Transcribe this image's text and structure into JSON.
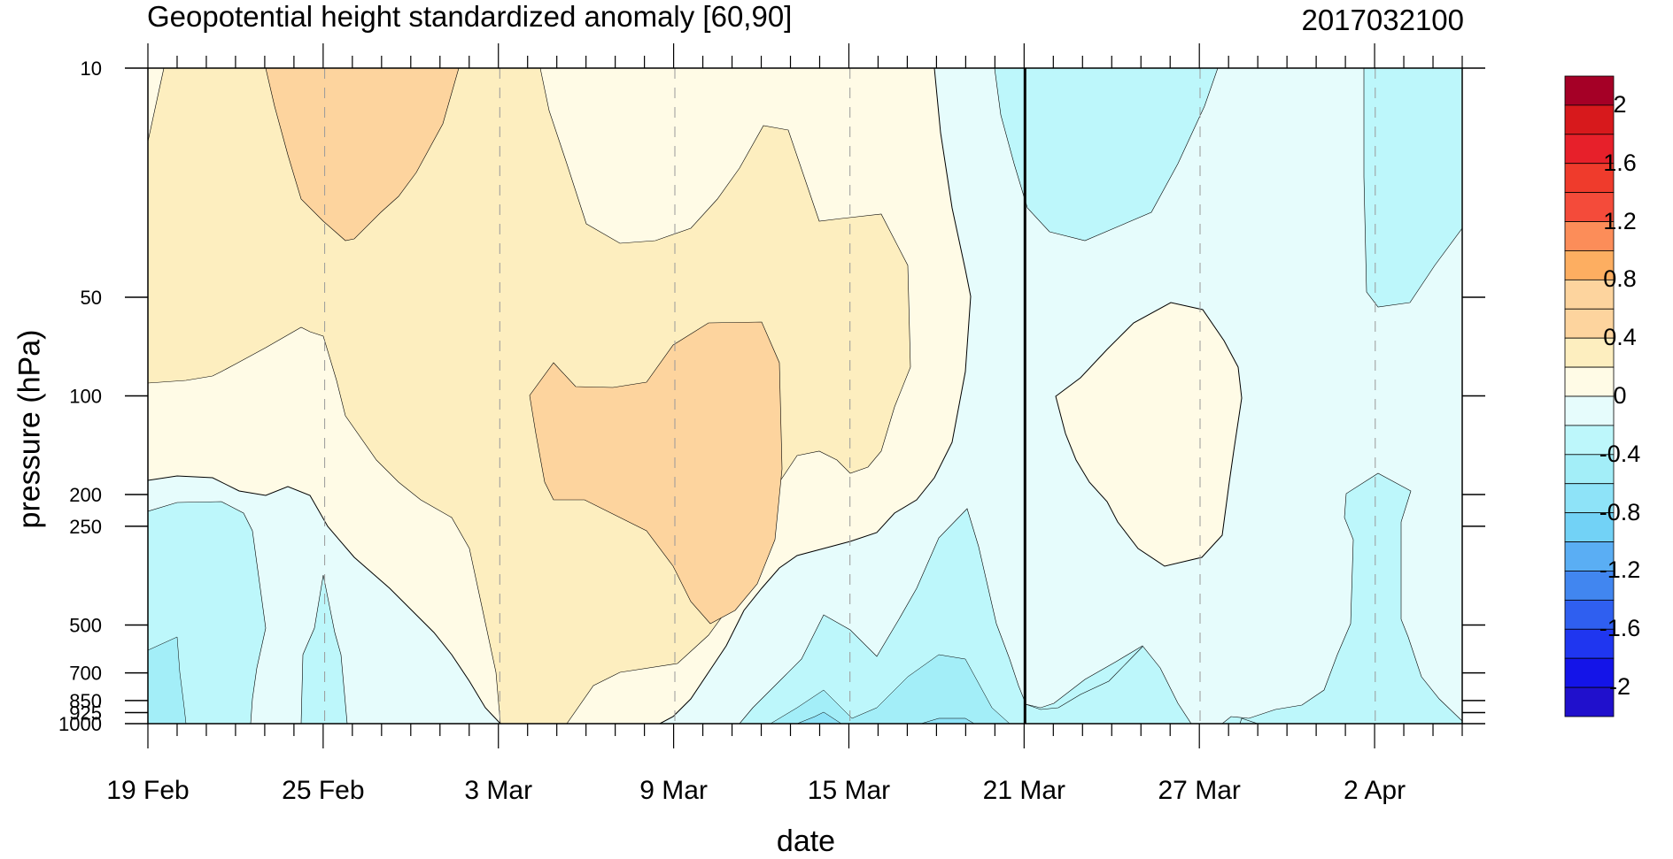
{
  "chart_data": {
    "type": "heatmap",
    "title": "Geopotential height standardized anomaly [60,90]",
    "subtitle": "2017032100",
    "xlabel": "date",
    "ylabel": "pressure (hPa)",
    "x_ticks": [
      "19 Feb",
      "25 Feb",
      "3 Mar",
      "9 Mar",
      "15 Mar",
      "21 Mar",
      "27 Mar",
      "2 Apr"
    ],
    "y_ticks": [
      "10",
      "50",
      "100",
      "200",
      "250",
      "500",
      "700",
      "850",
      "925",
      "1000"
    ],
    "y_scale": "log",
    "ylim": [
      1000,
      10
    ],
    "xlim": [
      "2017-02-19",
      "2017-04-05"
    ],
    "reference_line": "2017-03-21",
    "colorbar_labels": [
      "2",
      "1.6",
      "1.2",
      "0.8",
      "0.4",
      "0",
      "-0.4",
      "-0.8",
      "-1.2",
      "-1.6",
      "-2"
    ],
    "colorbar_colors": [
      "#a50026",
      "#d7191c",
      "#e7202a",
      "#ef3b2c",
      "#f44b3a",
      "#fc8d59",
      "#fdae61",
      "#fdd49e",
      "#fdd49e",
      "#fdeebf",
      "#fffbe6",
      "#e6fcfc",
      "#bdf7fb",
      "#a3eef8",
      "#8ee3f8",
      "#72d2f6",
      "#5aaef4",
      "#4186f0",
      "#2f5ff0",
      "#1f36f0",
      "#1414e8",
      "#2010cc"
    ],
    "fill_colors": {
      "pos_0_0.4": "#fffbe6",
      "pos_0.4_0.8": "#fdeebf",
      "pos_0.8_1.2": "#fdd49e",
      "neg_0_-0.4": "#e6fcfc",
      "neg_-0.4_-0.8": "#bdf7fb",
      "neg_-0.8_-1.2": "#a3eef8",
      "neg_-1.2_-1.6": "#8ee3f8"
    }
  }
}
